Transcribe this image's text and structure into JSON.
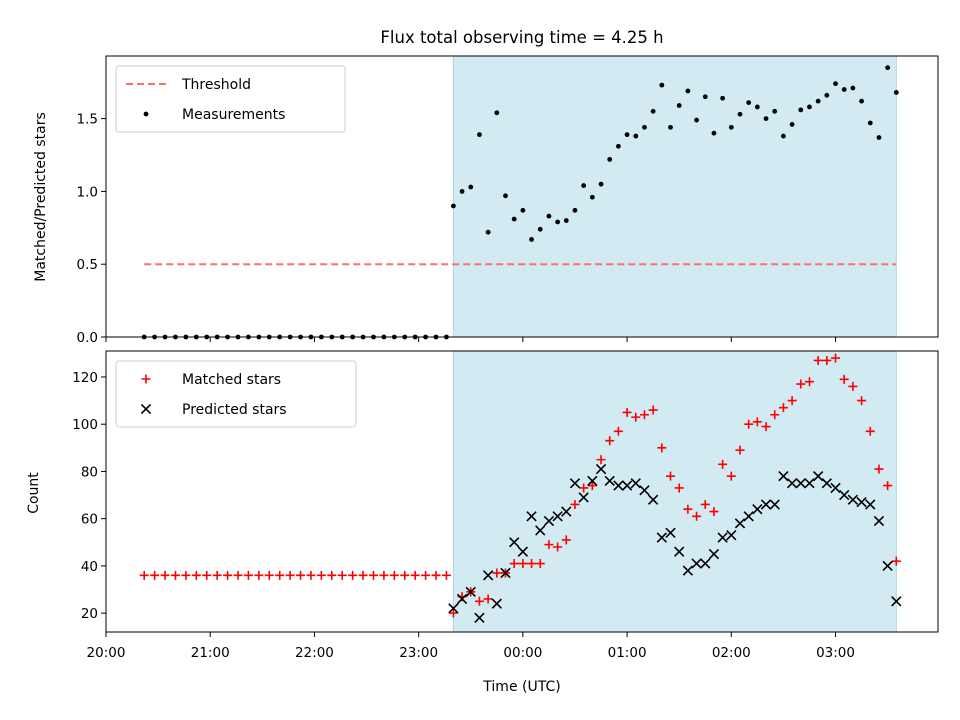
{
  "figure": {
    "title": "Flux total observing time = 4.25 h",
    "xlabel": "Time (UTC)",
    "colors": {
      "shade": "#add8e6",
      "threshold": "#ff6f6f",
      "measurement": "#000000",
      "matched": "#ff0000",
      "predicted": "#000000"
    }
  },
  "chart_data": [
    {
      "type": "scatter",
      "panel": "top",
      "title": "Flux total observing time = 4.25 h",
      "ylabel": "Matched/Predicted stars",
      "xlabel": "",
      "xlim": [
        "20:00",
        "03:59"
      ],
      "ylim": [
        0,
        1.93
      ],
      "yticks": [
        "0.0",
        "0.5",
        "1.0",
        "1.5"
      ],
      "shaded_span": [
        "23:20",
        "03:35"
      ],
      "legend": {
        "position": "top-left",
        "entries": [
          "Threshold",
          "Measurements"
        ]
      },
      "series": [
        {
          "name": "Threshold",
          "style": "dashed-line",
          "x": [
            "20:22",
            "03:35"
          ],
          "y": [
            0.5,
            0.5
          ]
        },
        {
          "name": "Measurements",
          "style": "dot",
          "x": [
            "20:22",
            "20:28",
            "20:34",
            "20:40",
            "20:46",
            "20:52",
            "20:58",
            "21:04",
            "21:10",
            "21:16",
            "21:22",
            "21:28",
            "21:34",
            "21:40",
            "21:46",
            "21:52",
            "21:58",
            "22:04",
            "22:10",
            "22:16",
            "22:22",
            "22:28",
            "22:34",
            "22:40",
            "22:46",
            "22:52",
            "22:58",
            "23:04",
            "23:10",
            "23:16",
            "23:20",
            "23:25",
            "23:30",
            "23:35",
            "23:40",
            "23:45",
            "23:50",
            "23:55",
            "00:00",
            "00:05",
            "00:10",
            "00:15",
            "00:20",
            "00:25",
            "00:30",
            "00:35",
            "00:40",
            "00:45",
            "00:50",
            "00:55",
            "01:00",
            "01:05",
            "01:10",
            "01:15",
            "01:20",
            "01:25",
            "01:30",
            "01:35",
            "01:40",
            "01:45",
            "01:50",
            "01:55",
            "02:00",
            "02:05",
            "02:10",
            "02:15",
            "02:20",
            "02:25",
            "02:30",
            "02:35",
            "02:40",
            "02:45",
            "02:50",
            "02:55",
            "03:00",
            "03:05",
            "03:10",
            "03:15",
            "03:20",
            "03:25",
            "03:30",
            "03:35"
          ],
          "y": [
            0,
            0,
            0,
            0,
            0,
            0,
            0,
            0,
            0,
            0,
            0,
            0,
            0,
            0,
            0,
            0,
            0,
            0,
            0,
            0,
            0,
            0,
            0,
            0,
            0,
            0,
            0,
            0,
            0,
            0,
            0.9,
            1.0,
            1.03,
            1.39,
            0.72,
            1.54,
            0.97,
            0.81,
            0.87,
            0.67,
            0.74,
            0.83,
            0.79,
            0.8,
            0.87,
            1.04,
            0.96,
            1.05,
            1.22,
            1.31,
            1.39,
            1.38,
            1.44,
            1.55,
            1.73,
            1.44,
            1.59,
            1.69,
            1.49,
            1.65,
            1.4,
            1.64,
            1.44,
            1.53,
            1.61,
            1.58,
            1.5,
            1.55,
            1.38,
            1.46,
            1.56,
            1.58,
            1.62,
            1.66,
            1.74,
            1.7,
            1.71,
            1.62,
            1.47,
            1.37,
            1.85,
            1.68
          ]
        }
      ]
    },
    {
      "type": "scatter",
      "panel": "bottom",
      "ylabel": "Count",
      "xlabel": "Time (UTC)",
      "xlim": [
        "20:00",
        "03:59"
      ],
      "ylim": [
        12,
        131
      ],
      "yticks": [
        "20",
        "40",
        "60",
        "80",
        "100",
        "120"
      ],
      "xticks": [
        "20:00",
        "21:00",
        "22:00",
        "23:00",
        "00:00",
        "01:00",
        "02:00",
        "03:00"
      ],
      "shaded_span": [
        "23:20",
        "03:35"
      ],
      "legend": {
        "position": "top-left",
        "entries": [
          "Matched stars",
          "Predicted stars"
        ]
      },
      "series": [
        {
          "name": "Matched stars",
          "marker": "plus",
          "x": [
            "20:22",
            "20:28",
            "20:34",
            "20:40",
            "20:46",
            "20:52",
            "20:58",
            "21:04",
            "21:10",
            "21:16",
            "21:22",
            "21:28",
            "21:34",
            "21:40",
            "21:46",
            "21:52",
            "21:58",
            "22:04",
            "22:10",
            "22:16",
            "22:22",
            "22:28",
            "22:34",
            "22:40",
            "22:46",
            "22:52",
            "22:58",
            "23:04",
            "23:10",
            "23:16",
            "23:20",
            "23:25",
            "23:30",
            "23:35",
            "23:40",
            "23:45",
            "23:50",
            "23:55",
            "00:00",
            "00:05",
            "00:10",
            "00:15",
            "00:20",
            "00:25",
            "00:30",
            "00:35",
            "00:40",
            "00:45",
            "00:50",
            "00:55",
            "01:00",
            "01:05",
            "01:10",
            "01:15",
            "01:20",
            "01:25",
            "01:30",
            "01:35",
            "01:40",
            "01:45",
            "01:50",
            "01:55",
            "02:00",
            "02:05",
            "02:10",
            "02:15",
            "02:20",
            "02:25",
            "02:30",
            "02:35",
            "02:40",
            "02:45",
            "02:50",
            "02:55",
            "03:00",
            "03:05",
            "03:10",
            "03:15",
            "03:20",
            "03:25",
            "03:30",
            "03:35"
          ],
          "y": [
            36,
            36,
            36,
            36,
            36,
            36,
            36,
            36,
            36,
            36,
            36,
            36,
            36,
            36,
            36,
            36,
            36,
            36,
            36,
            36,
            36,
            36,
            36,
            36,
            36,
            36,
            36,
            36,
            36,
            36,
            20,
            27,
            29,
            25,
            26,
            37,
            37,
            41,
            41,
            41,
            41,
            49,
            48,
            51,
            66,
            73,
            74,
            85,
            93,
            97,
            105,
            103,
            104,
            106,
            90,
            78,
            73,
            64,
            61,
            66,
            63,
            83,
            78,
            89,
            100,
            101,
            99,
            104,
            107,
            110,
            117,
            118,
            127,
            127,
            128,
            119,
            116,
            110,
            97,
            81,
            74,
            42
          ]
        },
        {
          "name": "Predicted stars",
          "marker": "x",
          "x": [
            "23:20",
            "23:25",
            "23:30",
            "23:35",
            "23:40",
            "23:45",
            "23:50",
            "23:55",
            "00:00",
            "00:05",
            "00:10",
            "00:15",
            "00:20",
            "00:25",
            "00:30",
            "00:35",
            "00:40",
            "00:45",
            "00:50",
            "00:55",
            "01:00",
            "01:05",
            "01:10",
            "01:15",
            "01:20",
            "01:25",
            "01:30",
            "01:35",
            "01:40",
            "01:45",
            "01:50",
            "01:55",
            "02:00",
            "02:05",
            "02:10",
            "02:15",
            "02:20",
            "02:25",
            "02:30",
            "02:35",
            "02:40",
            "02:45",
            "02:50",
            "02:55",
            "03:00",
            "03:05",
            "03:10",
            "03:15",
            "03:20",
            "03:25",
            "03:30",
            "03:35"
          ],
          "y": [
            22,
            26,
            29,
            18,
            36,
            24,
            37,
            50,
            46,
            61,
            55,
            59,
            61,
            63,
            75,
            69,
            76,
            81,
            76,
            74,
            74,
            75,
            72,
            68,
            52,
            54,
            46,
            38,
            41,
            41,
            45,
            52,
            53,
            58,
            61,
            64,
            66,
            66,
            78,
            75,
            75,
            75,
            78,
            75,
            73,
            70,
            68,
            67,
            66,
            59,
            40,
            25
          ]
        }
      ]
    }
  ]
}
